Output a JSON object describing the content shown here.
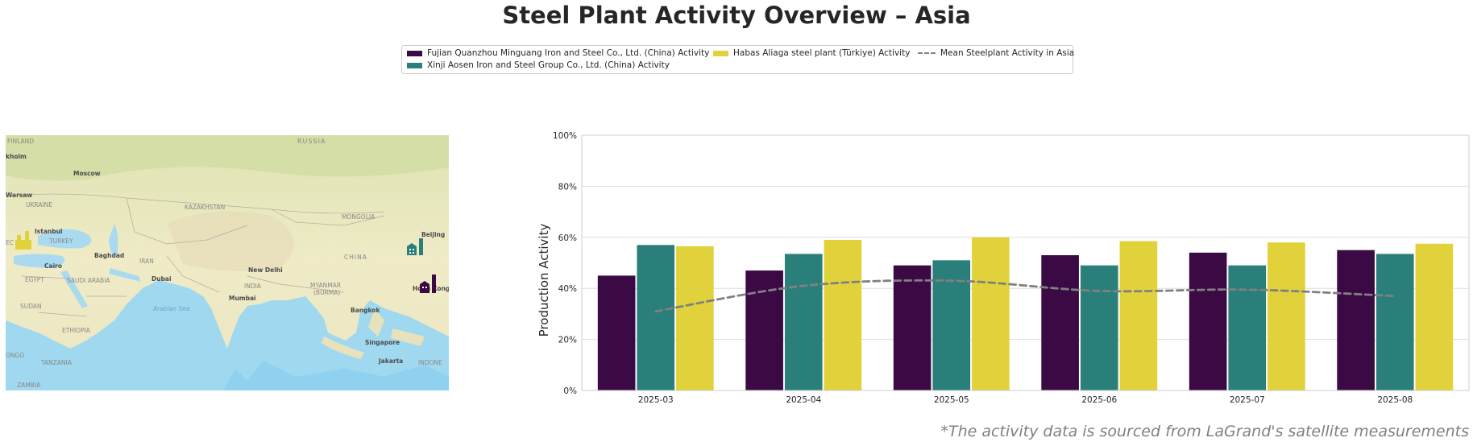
{
  "title": "Steel Plant Activity Overview – Asia",
  "footnote": "*The activity data is sourced from LaGrand's satellite measurements",
  "legend": {
    "fujian": "Fujian Quanzhou Minguang Iron and Steel Co., Ltd. (China) Activity",
    "xinji": "Xinji Aosen Iron and Steel Group Co., Ltd. (China) Activity",
    "habas": "Habas Aliaga steel plant (Türkiye) Activity",
    "mean": "Mean Steelplant Activity in Asia"
  },
  "colors": {
    "fujian": "#3b0a45",
    "xinji": "#2a7f7b",
    "habas": "#e1d23b",
    "mean": "#808080"
  },
  "map_labels": {
    "finland": "FINLAND",
    "russia": "RUSSIA",
    "kholm": "kholm",
    "moscow": "Moscow",
    "warsaw": "Warsaw",
    "ukraine": "UKRAINE",
    "kazakhstan": "KAZAKHSTAN",
    "mongolia": "MONGOLIA",
    "istanbul": "Istanbul",
    "turkey": "TURKEY",
    "beijing": "Beijing",
    "baghdad": "Baghdad",
    "iran": "IRAN",
    "china": "CHINA",
    "cairo": "Cairo",
    "egypt": "EGYPT",
    "saudi": "SAUDI ARABIA",
    "dubai": "Dubai",
    "newdelhi": "New Delhi",
    "india": "INDIA",
    "myanmar": "MYANMAR",
    "burma": "(BURMA)",
    "hongkong": "Hong Kong",
    "sudan": "SUDAN",
    "arabiansea": "Arabian Sea",
    "mumbai": "Mumbai",
    "bangkok": "Bangkok",
    "ethiopia": "ETHIOPIA",
    "singapore": "Singapore",
    "ongo": "ONGO",
    "tanzania": "TANZANIA",
    "jakarta": "Jakarta",
    "indone": "INDONE",
    "zambia": "ZAMBIA",
    "ec": "EC"
  },
  "chart_data": {
    "type": "bar",
    "categories": [
      "2025-03",
      "2025-04",
      "2025-05",
      "2025-06",
      "2025-07",
      "2025-08"
    ],
    "series": [
      {
        "name": "Fujian Quanzhou Minguang Iron and Steel Co., Ltd. (China) Activity",
        "key": "fujian",
        "values": [
          45,
          47,
          49,
          53,
          54,
          55
        ]
      },
      {
        "name": "Xinji Aosen Iron and Steel Group Co., Ltd. (China) Activity",
        "key": "xinji",
        "values": [
          57,
          53.5,
          51,
          49,
          49,
          53.5
        ]
      },
      {
        "name": "Habas Aliaga steel plant (Türkiye) Activity",
        "key": "habas",
        "values": [
          56.5,
          59,
          60,
          58.5,
          58,
          57.5
        ]
      }
    ],
    "line": {
      "name": "Mean Steelplant Activity in Asia",
      "values": [
        31,
        41,
        43,
        39,
        39.5,
        37
      ]
    },
    "ylabel": "Production Activity",
    "xlabel": "",
    "ylim": [
      0,
      100
    ],
    "yticks": [
      "0%",
      "20%",
      "40%",
      "60%",
      "80%",
      "100%"
    ],
    "grid": true
  }
}
